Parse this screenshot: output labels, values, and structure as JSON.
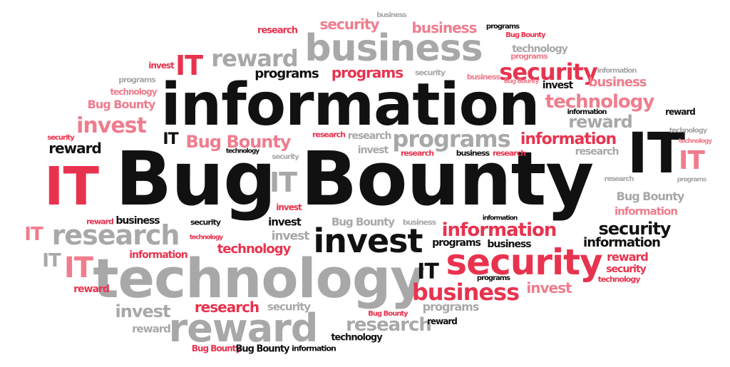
{
  "colors": {
    "black": "#111111",
    "red": "#e8334f",
    "pink": "#ef7d8e",
    "gray": "#a8a8a8"
  },
  "words": {
    "bug_bounty_main": "Bug Bounty",
    "information_main": "information",
    "technology_main": "technology",
    "business_main": "business",
    "reward_main": "reward",
    "invest_main": "invest",
    "security_main": "security",
    "it_right": "IT",
    "it_left": "IT",
    "research_left": "research",
    "programs_mid": "programs",
    "programs_red": "programs",
    "programs_black": "programs",
    "security_top": "security",
    "business_top": "business",
    "business_tiny": "business",
    "research_top": "research",
    "reward_top": "reward",
    "it_top": "IT",
    "invest_small": "invest",
    "programs_top_black": "programs",
    "bug_bounty_top": "Bug Bounty",
    "technology_top": "technology",
    "programs_pink": "programs",
    "security_small_gray": "security",
    "business_pink2": "business",
    "bug_bounty_tiny": "Bug Bounty",
    "information_tiny": "information",
    "invest_black": "invest",
    "programs_gray2": "programs",
    "technology_pink": "technology",
    "business_pink3": "business",
    "bug_bounty_pink": "Bug Bounty",
    "invest_pink": "invest",
    "technology_gray_right": "technology",
    "information_tiny2": "information",
    "reward_black": "reward",
    "reward_gray": "reward",
    "information_red": "information",
    "it_gray_small": "IT",
    "bug_bounty_red_mid": "Bug Bounty",
    "research_red_tiny": "research",
    "research_gray_tiny": "research",
    "programs_gray_mid": "programs",
    "invest_gray_mid": "invest",
    "research_red_mid": "research",
    "business_black_small": "business",
    "research_red_small": "research",
    "research_gray_right": "research",
    "it_pink_right": "IT",
    "technology_pink_tiny": "technology",
    "programs_gray_tiny": "programs",
    "security_black_left": "security",
    "reward_black_left": "reward",
    "technology_black_tiny": "technology",
    "security_gray_tiny": "security",
    "it_gray_mid": "IT",
    "research_gray_tiny2": "research",
    "bug_bounty_gray_right": "Bug Bounty",
    "information_pink_right": "information",
    "reward_red_left": "reward",
    "business_black_left": "business",
    "security_black_tiny": "security",
    "invest_red_tiny": "invest",
    "information_black_tiny": "information",
    "bug_bounty_gray_mid": "Bug Bounty",
    "business_gray_tiny": "business",
    "it_pink_left": "IT",
    "research_gray_big": "research",
    "invest_black_mid": "invest",
    "technology_red_tiny": "technology",
    "invest_gray_small": "invest",
    "information_red_mid": "information",
    "security_black_right": "security",
    "information_black_right": "information",
    "programs_black_small": "programs",
    "business_black_small2": "business",
    "technology_red_mid": "technology",
    "information_pink_left": "information",
    "it_gray_left2": "IT",
    "it_pink_left2": "IT",
    "reward_red_right": "reward",
    "security_red_right": "security",
    "technology_red_right": "technology",
    "it_black_mid": "IT",
    "programs_black_tiny": "programs",
    "business_red_big": "business",
    "invest_pink_right": "invest",
    "reward_red_small": "reward",
    "invest_gray_left": "invest",
    "research_red_bottom": "research",
    "security_gray_bottom": "security",
    "programs_gray_bottom": "programs",
    "bug_bounty_red_tiny": "Bug Bounty",
    "reward_black_tiny": "reward",
    "reward_gray_left": "reward",
    "research_gray_bottom": "research",
    "technology_black_bottom": "technology",
    "bug_bounty_red_bottom": "Bug Bounty",
    "bug_bounty_black_bottom": "Bug Bounty",
    "information_black_bottom": "information",
    "it_red_left_big": "IT"
  }
}
